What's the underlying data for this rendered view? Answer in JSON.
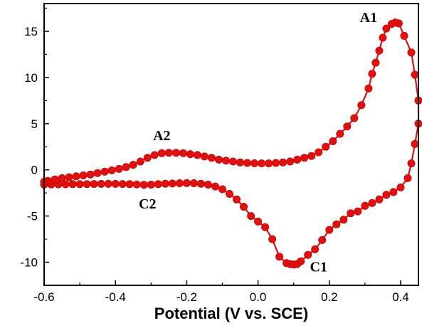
{
  "chart_data": {
    "type": "line",
    "title": "",
    "xlabel": "Potential (V vs. SCE)",
    "ylabel": "",
    "xlim": [
      -0.6,
      0.45
    ],
    "ylim": [
      -12.5,
      18
    ],
    "grid": false,
    "legend": "none",
    "xticks": [
      "-0.6",
      "-0.4",
      "-0.2",
      "0.0",
      "0.2",
      "0.4"
    ],
    "yticks": [
      "-10",
      "-5",
      "0",
      "5",
      "10",
      "15"
    ],
    "colors": {
      "series": "#e01010",
      "axes": "#000000"
    },
    "marker": "filled-circle",
    "annotations": [
      {
        "text": "A1",
        "x": 0.31,
        "y": 16.0
      },
      {
        "text": "A2",
        "x": -0.27,
        "y": 3.2
      },
      {
        "text": "C1",
        "x": 0.17,
        "y": -11.0
      },
      {
        "text": "C2",
        "x": -0.31,
        "y": -4.2
      }
    ],
    "series": [
      {
        "values": [
          [
            -0.6,
            -1.6
          ],
          [
            -0.58,
            -1.58
          ],
          [
            -0.56,
            -1.57
          ],
          [
            -0.54,
            -1.56
          ],
          [
            -0.52,
            -1.55
          ],
          [
            -0.5,
            -1.55
          ],
          [
            -0.48,
            -1.54
          ],
          [
            -0.46,
            -1.53
          ],
          [
            -0.44,
            -1.52
          ],
          [
            -0.42,
            -1.52
          ],
          [
            -0.4,
            -1.52
          ],
          [
            -0.38,
            -1.53
          ],
          [
            -0.36,
            -1.55
          ],
          [
            -0.34,
            -1.58
          ],
          [
            -0.32,
            -1.62
          ],
          [
            -0.3,
            -1.6
          ],
          [
            -0.28,
            -1.55
          ],
          [
            -0.26,
            -1.5
          ],
          [
            -0.24,
            -1.48
          ],
          [
            -0.22,
            -1.45
          ],
          [
            -0.2,
            -1.43
          ],
          [
            -0.18,
            -1.45
          ],
          [
            -0.16,
            -1.5
          ],
          [
            -0.14,
            -1.6
          ],
          [
            -0.12,
            -1.8
          ],
          [
            -0.1,
            -2.1
          ],
          [
            -0.08,
            -2.6
          ],
          [
            -0.06,
            -3.2
          ],
          [
            -0.04,
            -4.0
          ],
          [
            -0.02,
            -5.0
          ],
          [
            0.0,
            -5.6
          ],
          [
            0.02,
            -6.2
          ],
          [
            0.04,
            -7.5
          ],
          [
            0.06,
            -9.4
          ],
          [
            0.08,
            -10.1
          ],
          [
            0.09,
            -10.2
          ],
          [
            0.1,
            -10.25
          ],
          [
            0.11,
            -10.2
          ],
          [
            0.12,
            -9.9
          ],
          [
            0.14,
            -9.2
          ],
          [
            0.16,
            -8.6
          ],
          [
            0.18,
            -7.6
          ],
          [
            0.2,
            -6.5
          ],
          [
            0.22,
            -5.9
          ],
          [
            0.24,
            -5.4
          ],
          [
            0.26,
            -4.7
          ],
          [
            0.28,
            -4.5
          ],
          [
            0.3,
            -3.9
          ],
          [
            0.32,
            -3.6
          ],
          [
            0.34,
            -3.2
          ],
          [
            0.36,
            -2.7
          ],
          [
            0.38,
            -2.4
          ],
          [
            0.4,
            -1.9
          ],
          [
            0.42,
            -0.9
          ],
          [
            0.43,
            0.7
          ],
          [
            0.44,
            2.8
          ],
          [
            0.45,
            5.0
          ],
          [
            0.45,
            7.5
          ],
          [
            0.44,
            10.3
          ],
          [
            0.43,
            12.7
          ],
          [
            0.41,
            14.5
          ],
          [
            0.395,
            15.85
          ],
          [
            0.385,
            15.95
          ],
          [
            0.375,
            15.8
          ],
          [
            0.36,
            15.3
          ],
          [
            0.35,
            14.3
          ],
          [
            0.34,
            12.9
          ],
          [
            0.33,
            11.6
          ],
          [
            0.32,
            10.4
          ],
          [
            0.31,
            8.8
          ],
          [
            0.29,
            7.0
          ],
          [
            0.27,
            5.6
          ],
          [
            0.25,
            4.7
          ],
          [
            0.23,
            3.9
          ],
          [
            0.21,
            3.1
          ],
          [
            0.19,
            2.5
          ],
          [
            0.17,
            1.9
          ],
          [
            0.15,
            1.5
          ],
          [
            0.13,
            1.3
          ],
          [
            0.11,
            1.1
          ],
          [
            0.09,
            0.9
          ],
          [
            0.07,
            0.8
          ],
          [
            0.05,
            0.75
          ],
          [
            0.03,
            0.7
          ],
          [
            0.01,
            0.7
          ],
          [
            -0.01,
            0.72
          ],
          [
            -0.03,
            0.75
          ],
          [
            -0.05,
            0.8
          ],
          [
            -0.07,
            0.9
          ],
          [
            -0.09,
            1.0
          ],
          [
            -0.11,
            1.1
          ],
          [
            -0.13,
            1.3
          ],
          [
            -0.15,
            1.45
          ],
          [
            -0.17,
            1.6
          ],
          [
            -0.19,
            1.7
          ],
          [
            -0.21,
            1.8
          ],
          [
            -0.23,
            1.85
          ],
          [
            -0.25,
            1.85
          ],
          [
            -0.27,
            1.8
          ],
          [
            -0.29,
            1.6
          ],
          [
            -0.31,
            1.3
          ],
          [
            -0.33,
            0.9
          ],
          [
            -0.35,
            0.55
          ],
          [
            -0.37,
            0.3
          ],
          [
            -0.39,
            0.1
          ],
          [
            -0.41,
            -0.05
          ],
          [
            -0.43,
            -0.2
          ],
          [
            -0.45,
            -0.35
          ],
          [
            -0.47,
            -0.5
          ],
          [
            -0.49,
            -0.6
          ],
          [
            -0.51,
            -0.7
          ],
          [
            -0.53,
            -0.8
          ],
          [
            -0.55,
            -0.9
          ],
          [
            -0.57,
            -1.05
          ],
          [
            -0.59,
            -1.2
          ],
          [
            -0.6,
            -1.3
          ]
        ]
      }
    ]
  }
}
